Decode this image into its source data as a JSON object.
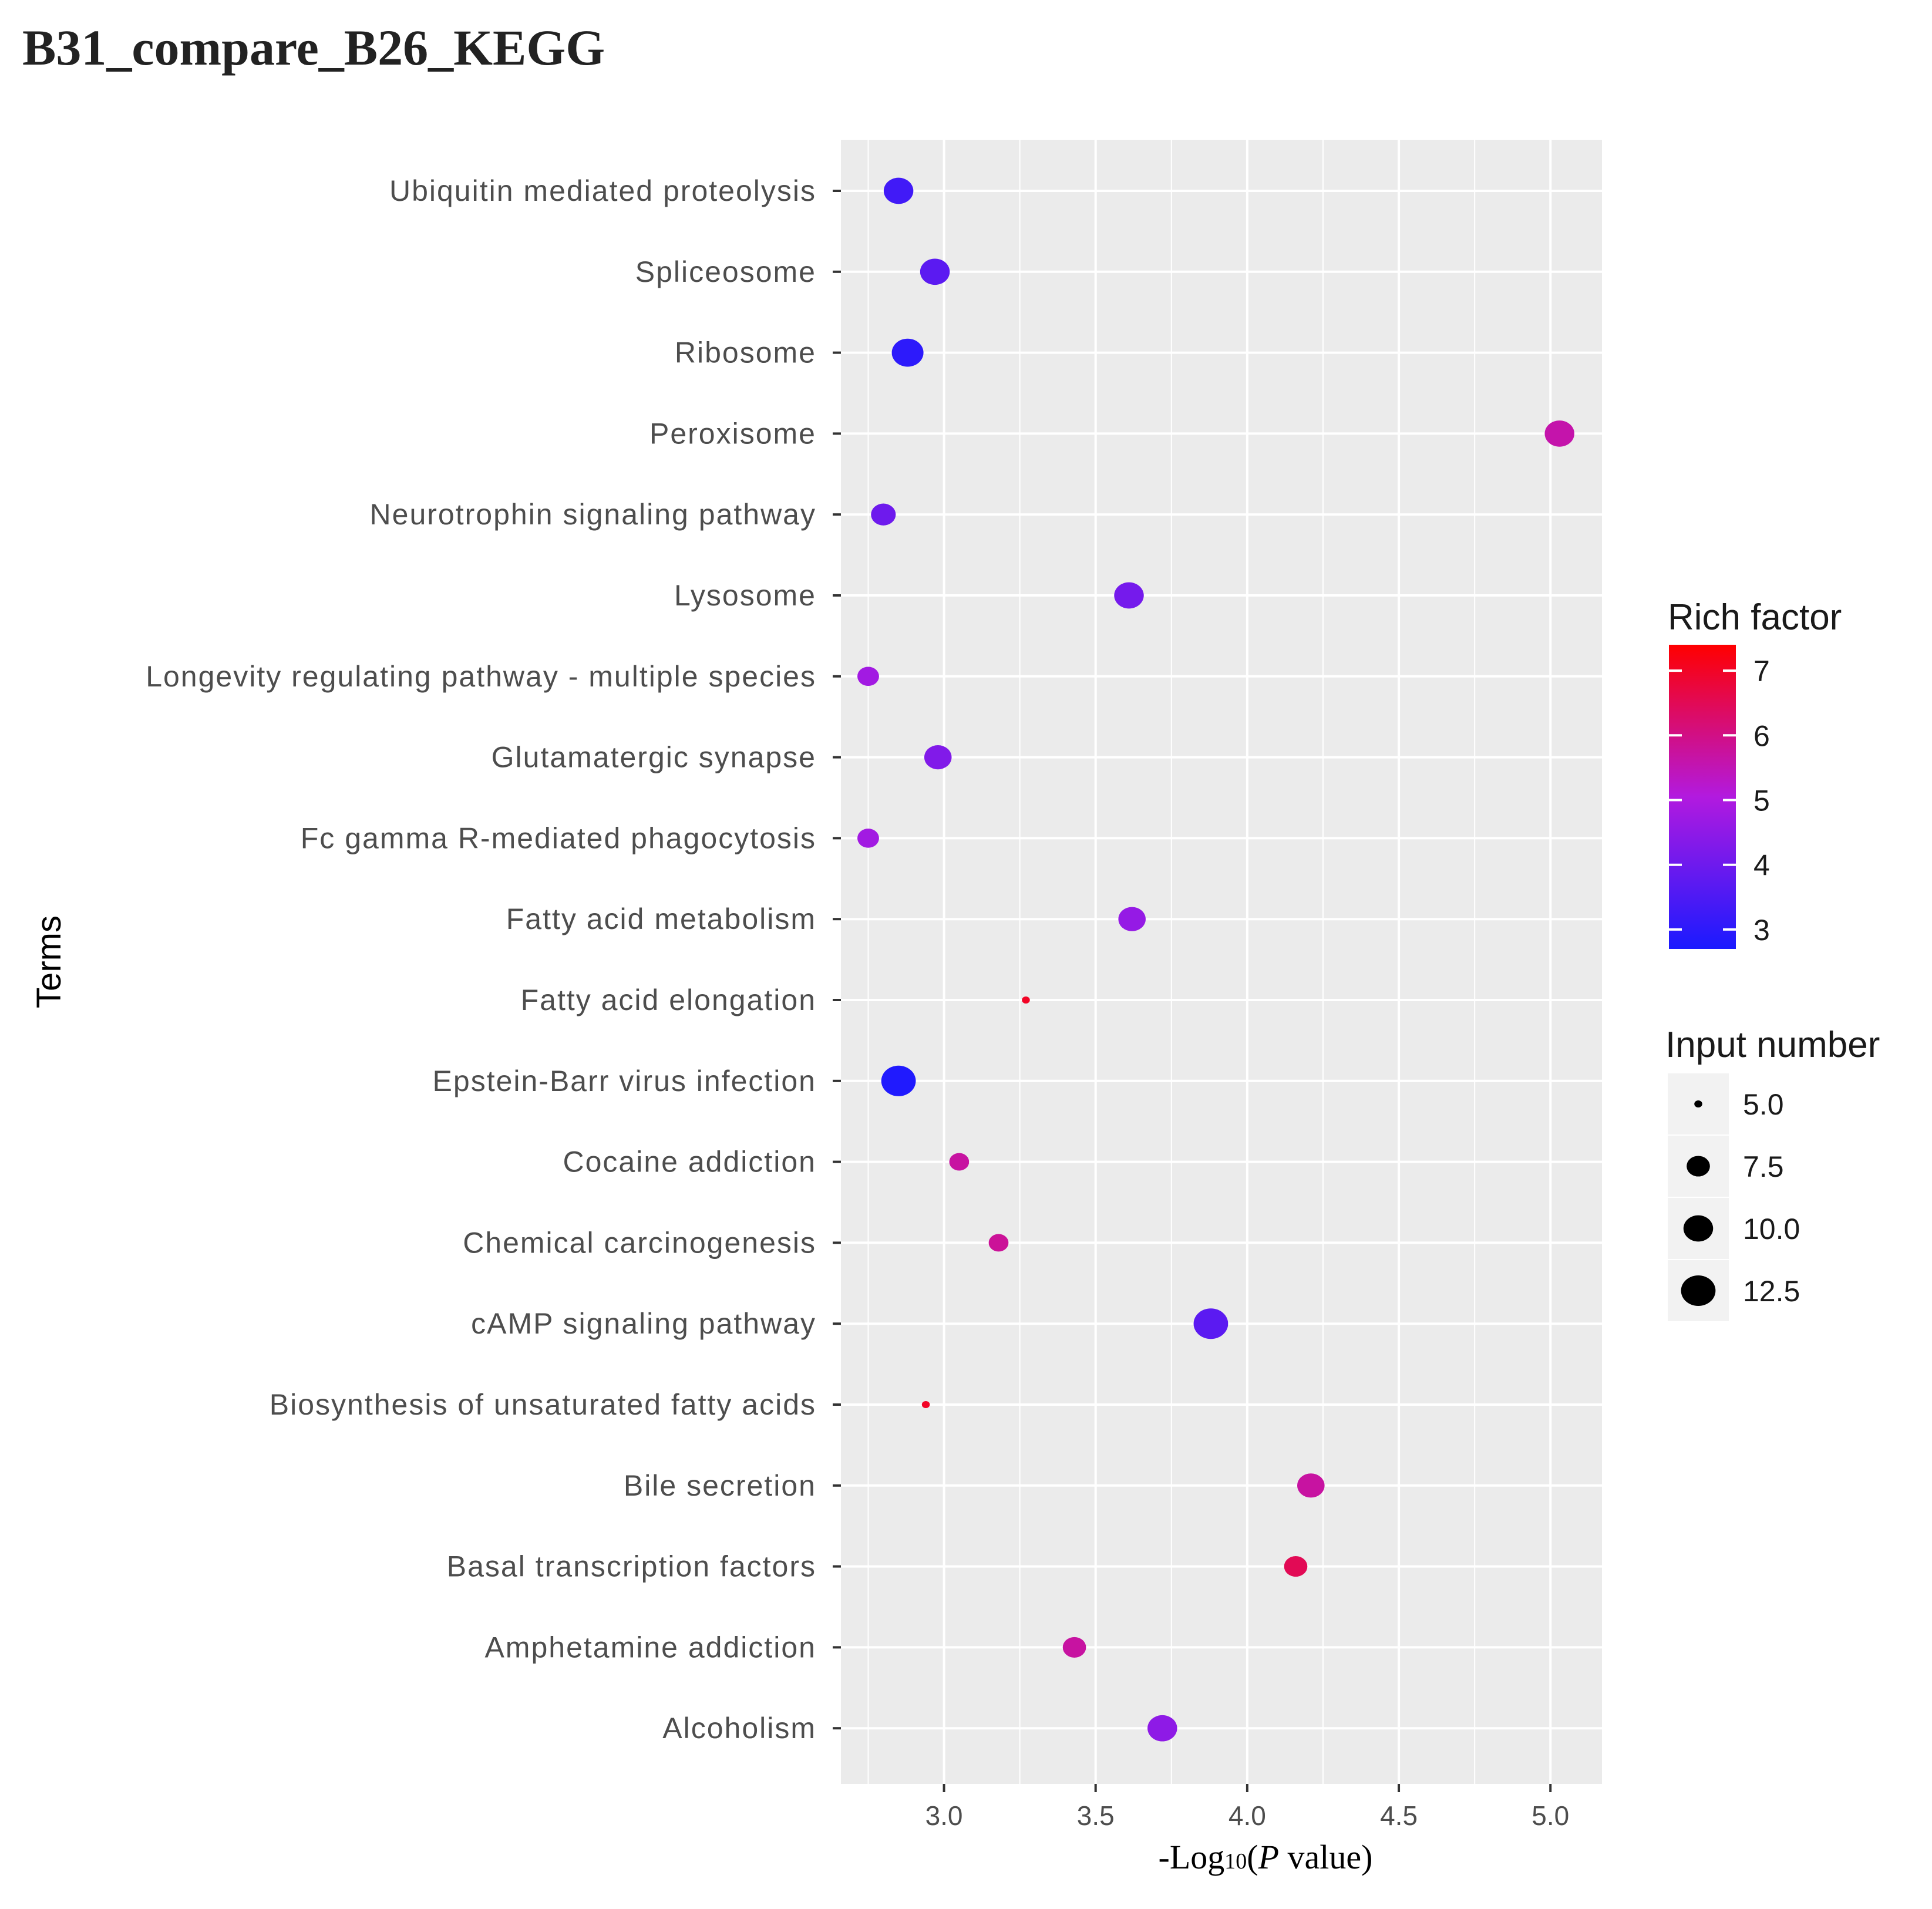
{
  "page_title": "B31_compare_B26_KEGG",
  "chart_data": {
    "type": "scatter",
    "title": "B31_compare_B26_KEGG",
    "xlabel": {
      "prefix": "-Log",
      "subscript": "10",
      "open": "(",
      "italic": "P",
      "suffix": " value)"
    },
    "ylabel": "Terms",
    "xlim": [
      2.66,
      5.17
    ],
    "xticks": [
      3.0,
      3.5,
      4.0,
      4.5,
      5.0
    ],
    "xtick_labels": [
      "3.0",
      "3.5",
      "4.0",
      "4.5",
      "5.0"
    ],
    "categories": [
      "Ubiquitin mediated proteolysis",
      "Spliceosome",
      "Ribosome",
      "Peroxisome",
      "Neurotrophin signaling pathway",
      "Lysosome",
      "Longevity regulating pathway - multiple species",
      "Glutamatergic synapse",
      "Fc gamma R-mediated phagocytosis",
      "Fatty acid metabolism",
      "Fatty acid elongation",
      "Epstein-Barr virus infection",
      "Cocaine addiction",
      "Chemical carcinogenesis",
      "cAMP signaling pathway",
      "Biosynthesis of unsaturated fatty acids",
      "Bile secretion",
      "Basal transcription factors",
      "Amphetamine addiction",
      "Alcoholism"
    ],
    "points": [
      {
        "term": "Ubiquitin mediated proteolysis",
        "x": 2.85,
        "rich_factor": 3.3,
        "input_number": 10
      },
      {
        "term": "Spliceosome",
        "x": 2.97,
        "rich_factor": 3.7,
        "input_number": 10
      },
      {
        "term": "Ribosome",
        "x": 2.88,
        "rich_factor": 3.0,
        "input_number": 11
      },
      {
        "term": "Peroxisome",
        "x": 5.03,
        "rich_factor": 5.6,
        "input_number": 10
      },
      {
        "term": "Neurotrophin signaling pathway",
        "x": 2.8,
        "rich_factor": 4.0,
        "input_number": 8
      },
      {
        "term": "Lysosome",
        "x": 3.61,
        "rich_factor": 4.1,
        "input_number": 10
      },
      {
        "term": "Longevity regulating pathway - multiple species",
        "x": 2.75,
        "rich_factor": 4.8,
        "input_number": 7
      },
      {
        "term": "Glutamatergic synapse",
        "x": 2.98,
        "rich_factor": 4.3,
        "input_number": 9
      },
      {
        "term": "Fc gamma R-mediated phagocytosis",
        "x": 2.75,
        "rich_factor": 4.8,
        "input_number": 7
      },
      {
        "term": "Fatty acid metabolism",
        "x": 3.62,
        "rich_factor": 4.6,
        "input_number": 9
      },
      {
        "term": "Fatty acid elongation",
        "x": 3.27,
        "rich_factor": 7.0,
        "input_number": 5
      },
      {
        "term": "Epstein-Barr virus infection",
        "x": 2.85,
        "rich_factor": 2.8,
        "input_number": 12.5
      },
      {
        "term": "Cocaine addiction",
        "x": 3.05,
        "rich_factor": 5.7,
        "input_number": 6.5
      },
      {
        "term": "Chemical carcinogenesis",
        "x": 3.18,
        "rich_factor": 5.8,
        "input_number": 6.5
      },
      {
        "term": "cAMP signaling pathway",
        "x": 3.88,
        "rich_factor": 3.7,
        "input_number": 12.5
      },
      {
        "term": "Biosynthesis of unsaturated fatty acids",
        "x": 2.94,
        "rich_factor": 7.0,
        "input_number": 5
      },
      {
        "term": "Bile secretion",
        "x": 4.21,
        "rich_factor": 5.7,
        "input_number": 9
      },
      {
        "term": "Basal transcription factors",
        "x": 4.16,
        "rich_factor": 6.5,
        "input_number": 7.5
      },
      {
        "term": "Amphetamine addiction",
        "x": 3.43,
        "rich_factor": 5.7,
        "input_number": 7.5
      },
      {
        "term": "Alcoholism",
        "x": 3.72,
        "rich_factor": 4.5,
        "input_number": 10
      }
    ],
    "color_legend": {
      "title": "Rich factor",
      "min": 2.7,
      "max": 7.4,
      "low_color": "#1a1aff",
      "high_color": "#ff0000",
      "ticks": [
        7,
        6,
        5,
        4,
        3
      ],
      "tick_labels": [
        "7",
        "6",
        "5",
        "4",
        "3"
      ]
    },
    "size_legend": {
      "title": "Input number",
      "min": 5,
      "max": 12.5,
      "values": [
        5.0,
        7.5,
        10.0,
        12.5
      ],
      "labels": [
        "5.0",
        "7.5",
        "10.0",
        "12.5"
      ]
    },
    "legend_position": "right",
    "grid": true,
    "panel_color": "#ebebeb"
  }
}
